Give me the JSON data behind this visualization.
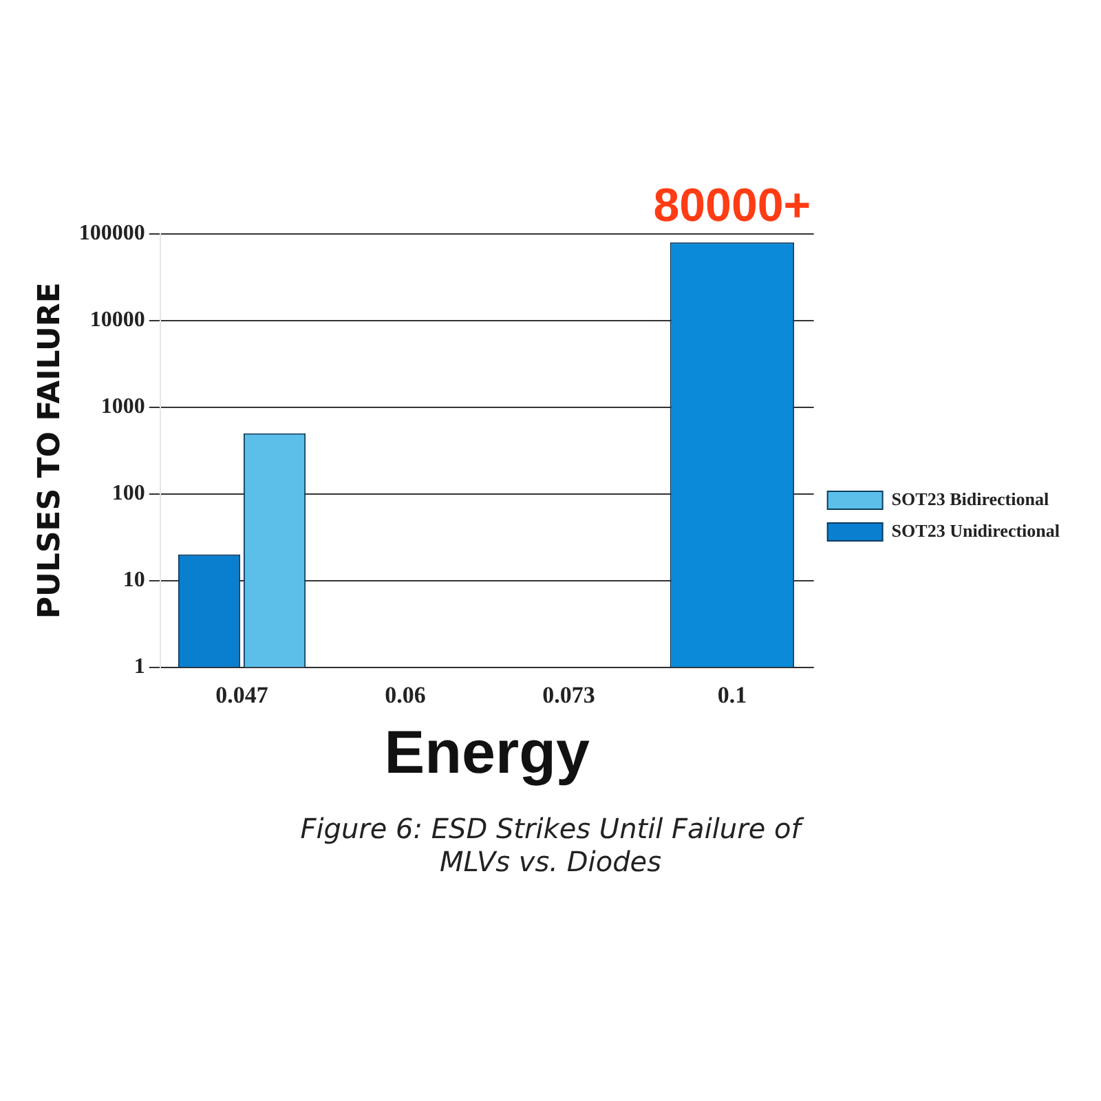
{
  "chart_data": {
    "type": "bar",
    "xlabel": "Energy",
    "ylabel": "PULSES TO FAILURE",
    "categories": [
      "0.047",
      "0.06",
      "0.073",
      "0.1"
    ],
    "series": [
      {
        "name": "SOT23 Unidirectional",
        "color": "#0b7fcf",
        "values": [
          20,
          null,
          null,
          null
        ]
      },
      {
        "name": "SOT23 Bidirectional",
        "color": "#5bbfe9",
        "values": [
          500,
          null,
          null,
          null
        ]
      },
      {
        "color": "#0a8ad8",
        "values": [
          null,
          null,
          null,
          80000
        ],
        "value_labels": [
          null,
          null,
          null,
          "80000+"
        ]
      }
    ],
    "log": "y",
    "ylim": [
      1,
      100000
    ],
    "yticks": [
      1,
      10,
      100,
      1000,
      10000,
      100000
    ],
    "grid": "y",
    "legend": "right",
    "annotations": [
      "Figure 6: ESD Strikes Until Failure of MLVs vs. Diodes"
    ]
  }
}
